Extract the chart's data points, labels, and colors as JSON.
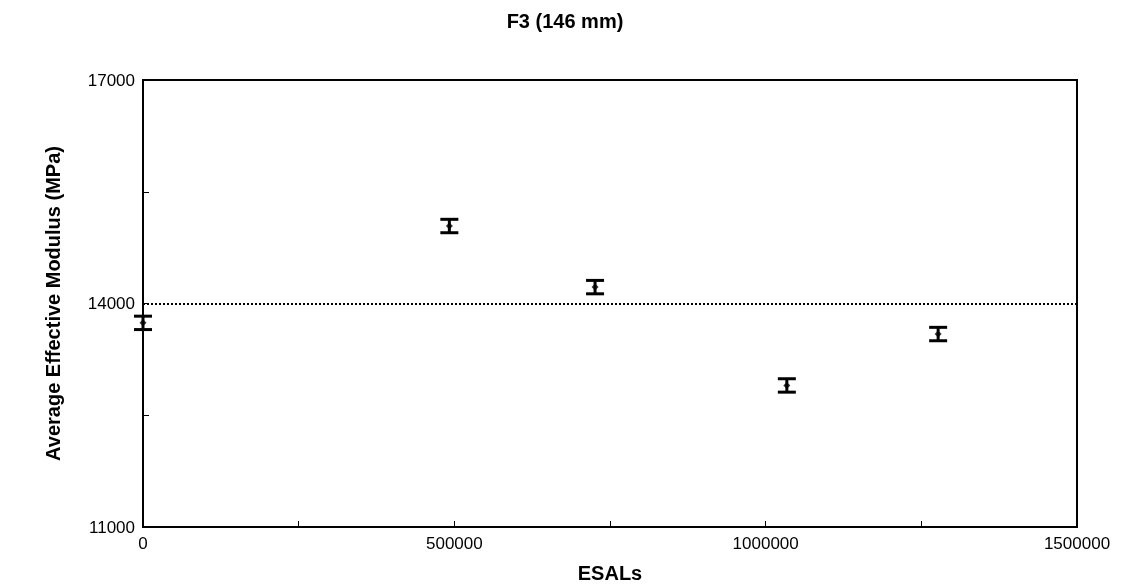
{
  "chart_data": {
    "type": "scatter",
    "title": "F3 (146 mm)",
    "xlabel": "ESALs",
    "ylabel": "Average Effective Modulus (MPa)",
    "x": [
      0,
      492000,
      726000,
      1034000,
      1277000
    ],
    "values": [
      13740,
      15040,
      14220,
      12900,
      13590
    ],
    "errors": [
      90,
      90,
      90,
      90,
      90
    ],
    "color": "#000000",
    "marker": "diamond",
    "xlim": [
      0,
      1500000
    ],
    "xticks": [
      0,
      {
        "value": 250000,
        "label": null
      },
      500000,
      {
        "value": 750000,
        "label": null
      },
      1000000,
      {
        "value": 1250000,
        "label": null
      },
      1500000
    ],
    "ylim": [
      11000,
      17000
    ],
    "yticks": [
      11000,
      {
        "value": 12500,
        "label": null
      },
      14000,
      {
        "value": 15500,
        "label": null
      },
      17000
    ],
    "ref_lines": [
      {
        "axis": "y",
        "value": 14000,
        "label": null,
        "line_style": "dotted",
        "color": "#000000"
      }
    ],
    "grid": false
  }
}
